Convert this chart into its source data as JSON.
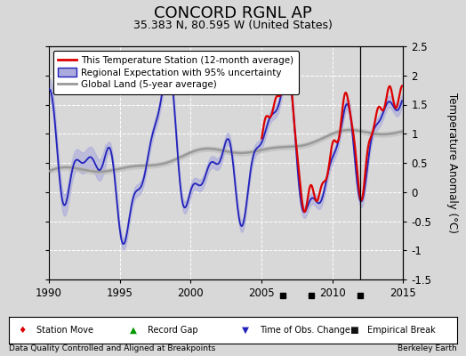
{
  "title": "CONCORD RGNL AP",
  "subtitle": "35.383 N, 80.595 W (United States)",
  "ylabel": "Temperature Anomaly (°C)",
  "xlabel_left": "Data Quality Controlled and Aligned at Breakpoints",
  "xlabel_right": "Berkeley Earth",
  "xlim": [
    1990,
    2015
  ],
  "ylim": [
    -1.5,
    2.5
  ],
  "yticks": [
    -1.5,
    -1.0,
    -0.5,
    0.0,
    0.5,
    1.0,
    1.5,
    2.0,
    2.5
  ],
  "xticks": [
    1990,
    1995,
    2000,
    2005,
    2010,
    2015
  ],
  "background_color": "#d8d8d8",
  "plot_bg_color": "#d8d8d8",
  "grid_color": "#ffffff",
  "empirical_break_years": [
    2006.5,
    2008.5,
    2012.0
  ],
  "vertical_line_year": 2012.0,
  "station_color": "#dd0000",
  "regional_color": "#2222bb",
  "regional_fill_color": "#aaaadd",
  "global_color": "#999999",
  "title_fontsize": 13,
  "subtitle_fontsize": 9,
  "legend_fontsize": 7.5,
  "tick_fontsize": 8.5
}
